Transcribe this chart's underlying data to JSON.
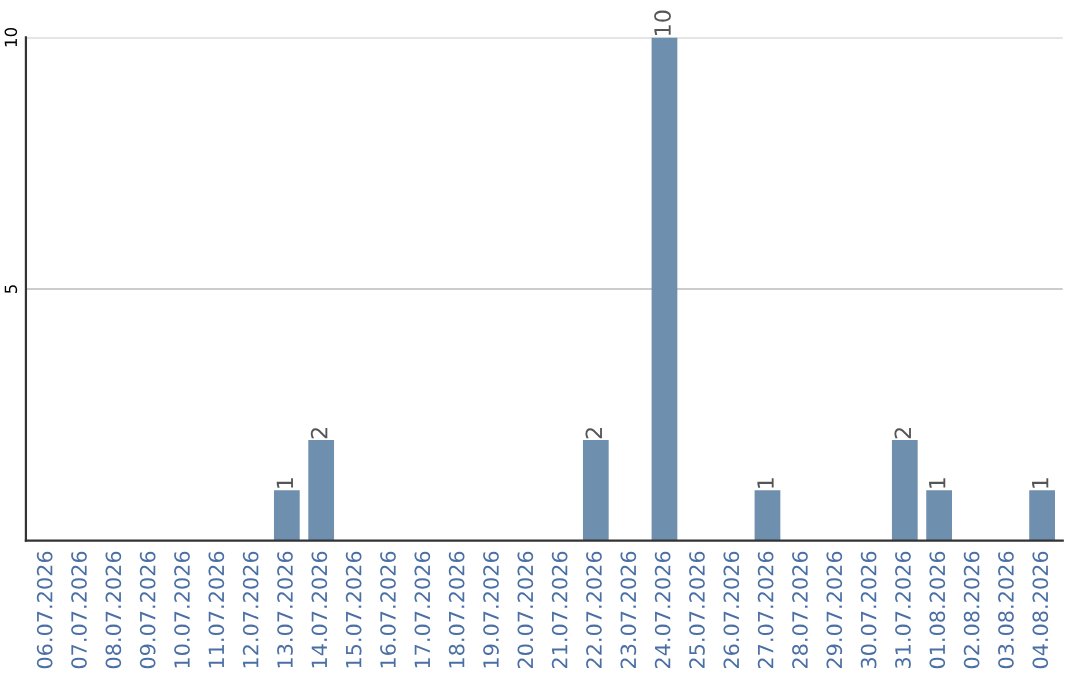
{
  "chart_data": {
    "type": "bar",
    "categories": [
      "06.07.2026",
      "07.07.2026",
      "08.07.2026",
      "09.07.2026",
      "10.07.2026",
      "11.07.2026",
      "12.07.2026",
      "13.07.2026",
      "14.07.2026",
      "15.07.2026",
      "16.07.2026",
      "17.07.2026",
      "18.07.2026",
      "19.07.2026",
      "20.07.2026",
      "21.07.2026",
      "22.07.2026",
      "23.07.2026",
      "24.07.2026",
      "25.07.2026",
      "26.07.2026",
      "27.07.2026",
      "28.07.2026",
      "29.07.2026",
      "30.07.2026",
      "31.07.2026",
      "01.08.2026",
      "02.08.2026",
      "03.08.2026",
      "04.08.2026"
    ],
    "values": [
      0,
      0,
      0,
      0,
      0,
      0,
      0,
      1,
      2,
      0,
      0,
      0,
      0,
      0,
      0,
      0,
      2,
      0,
      10,
      0,
      0,
      1,
      0,
      0,
      0,
      2,
      1,
      0,
      0,
      1
    ],
    "value_labels": [
      null,
      null,
      null,
      null,
      null,
      null,
      null,
      "1",
      "2",
      null,
      null,
      null,
      null,
      null,
      null,
      null,
      "2",
      null,
      "10",
      null,
      null,
      "1",
      null,
      null,
      null,
      "2",
      "1",
      null,
      null,
      "1"
    ],
    "color": "#6e8fae",
    "ylim": [
      0,
      10.0
    ],
    "yticks": [
      5,
      10
    ],
    "grid": "y",
    "legend": false
  }
}
